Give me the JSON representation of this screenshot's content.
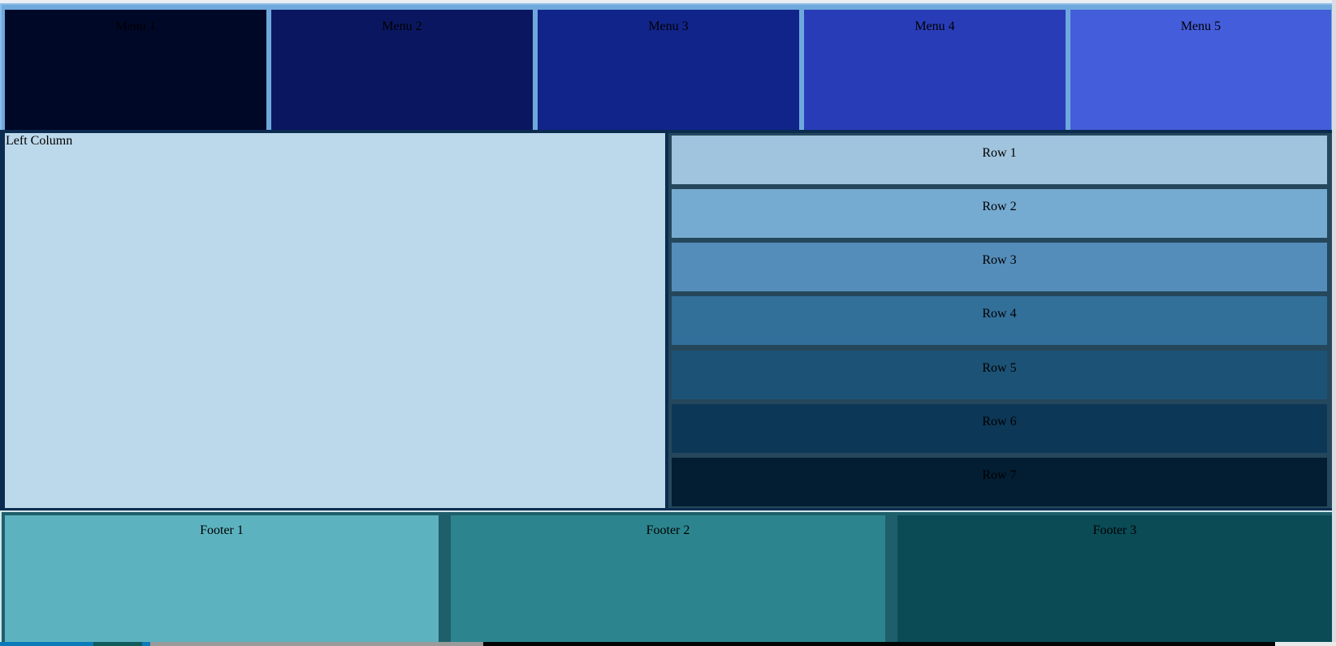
{
  "menu": {
    "items": [
      {
        "label": "Menu 1",
        "color": "#000828"
      },
      {
        "label": "Menu 2",
        "color": "#0a1760"
      },
      {
        "label": "Menu 3",
        "color": "#11248a"
      },
      {
        "label": "Menu 4",
        "color": "#283cb8"
      },
      {
        "label": "Menu 5",
        "color": "#445ddb"
      }
    ]
  },
  "left_column": {
    "label": "Left Column",
    "color": "#bcd9eb"
  },
  "rows": [
    {
      "label": "Row 1",
      "color": "#a0c4de"
    },
    {
      "label": "Row 2",
      "color": "#76abd1"
    },
    {
      "label": "Row 3",
      "color": "#558dba"
    },
    {
      "label": "Row 4",
      "color": "#326f99"
    },
    {
      "label": "Row 5",
      "color": "#1c5275"
    },
    {
      "label": "Row 6",
      "color": "#0c3757"
    },
    {
      "label": "Row 7",
      "color": "#031e33"
    }
  ],
  "footer": {
    "items": [
      {
        "label": "Footer 1",
        "color": "#5cb3bf"
      },
      {
        "label": "Footer 2",
        "color": "#2c858e"
      },
      {
        "label": "Footer 3",
        "color": "#0a4b55"
      }
    ]
  }
}
